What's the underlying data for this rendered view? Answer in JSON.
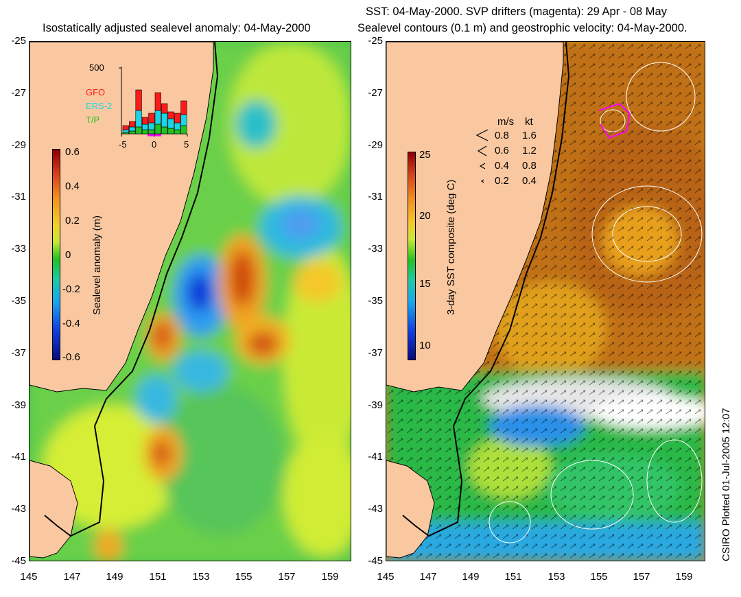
{
  "left": {
    "title": "Isostatically adjusted sealevel anomaly: 04-May-2000",
    "colorbar_label": "Sealevel anomaly (m)",
    "colorbar_ticks": [
      "0.6",
      "0.4",
      "0.2",
      "0",
      "-0.2",
      "-0.4",
      "-0.6"
    ],
    "colorbar_range": [
      -0.6,
      0.6
    ],
    "inset": {
      "ymax_label": "500",
      "xticks": [
        "-5",
        "0",
        "5"
      ],
      "legend": [
        {
          "name": "GFO",
          "color": "#ff1a1a"
        },
        {
          "name": "ERS-2",
          "color": "#19d5e6"
        },
        {
          "name": "T/P",
          "color": "#21c421"
        }
      ]
    }
  },
  "right": {
    "title_line1": "SST: 04-May-2000. SVP drifters (magenta): 29 Apr - 08 May",
    "title_line2": "Sealevel contours (0.1 m) and geostrophic velocity: 04-May-2000.",
    "colorbar_label": "3-day SST composite (deg C)",
    "colorbar_ticks": [
      "25",
      "20",
      "15",
      "10"
    ],
    "colorbar_range": [
      8,
      25
    ],
    "velocity_legend": {
      "header": [
        "m/s",
        "kt"
      ],
      "rows": [
        [
          "0.8",
          "1.6"
        ],
        [
          "0.6",
          "1.2"
        ],
        [
          "0.4",
          "0.8"
        ],
        [
          "0.2",
          "0.4"
        ]
      ]
    }
  },
  "axes": {
    "x_ticks": [
      "145",
      "147",
      "149",
      "151",
      "153",
      "155",
      "157",
      "159"
    ],
    "y_ticks": [
      "-25",
      "-27",
      "-29",
      "-31",
      "-33",
      "-35",
      "-37",
      "-39",
      "-41",
      "-43",
      "-45"
    ],
    "lon_range": [
      145,
      160
    ],
    "lat_range": [
      -45,
      -25
    ]
  },
  "credit": "CSIRO Plotted 01-Jul-2005 12:07",
  "colors": {
    "land": "#fac8a0",
    "coast": "#000000"
  }
}
